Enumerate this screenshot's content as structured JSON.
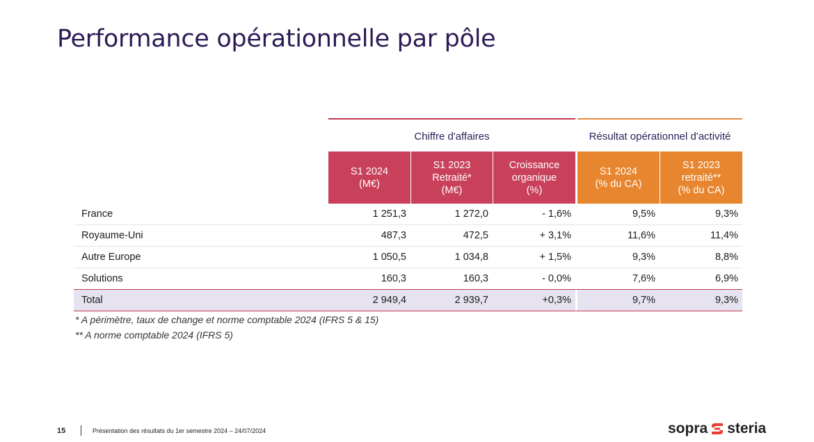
{
  "title": "Performance opérationnelle par pôle",
  "groups": {
    "ca": "Chiffre d'affaires",
    "roa": "Résultat opérationnel d'activité"
  },
  "headers": [
    "S1 2024\n(M€)",
    "S1 2023\nRetraité*\n(M€)",
    "Croissance\norganique\n(%)",
    "S1 2024\n(% du CA)",
    "S1 2023\nretraité**\n(% du CA)"
  ],
  "rows": [
    {
      "label": "France",
      "v": [
        "1 251,3",
        "1 272,0",
        "- 1,6%",
        "9,5%",
        "9,3%"
      ]
    },
    {
      "label": "Royaume-Uni",
      "v": [
        "487,3",
        "472,5",
        "+ 3,1%",
        "11,6%",
        "11,4%"
      ]
    },
    {
      "label": "Autre Europe",
      "v": [
        "1 050,5",
        "1 034,8",
        "+ 1,5%",
        "9,3%",
        "8,8%"
      ]
    },
    {
      "label": "Solutions",
      "v": [
        "160,3",
        "160,3",
        "- 0,0%",
        "7,6%",
        "6,9%"
      ]
    },
    {
      "label": "Total",
      "v": [
        "2 949,4",
        "2 939,7",
        "+0,3%",
        "9,7%",
        "9,3%"
      ]
    }
  ],
  "notes": [
    "* A périmètre, taux de change et norme comptable 2024 (IFRS 5 & 15)",
    "** A norme comptable 2024 (IFRS 5)"
  ],
  "footer": {
    "page": "15",
    "text": "Présentation des résultats du 1er semestre 2024 – 24/07/2024"
  },
  "logo": {
    "left": "sopra",
    "right": "steria",
    "color": "#e63e30"
  }
}
